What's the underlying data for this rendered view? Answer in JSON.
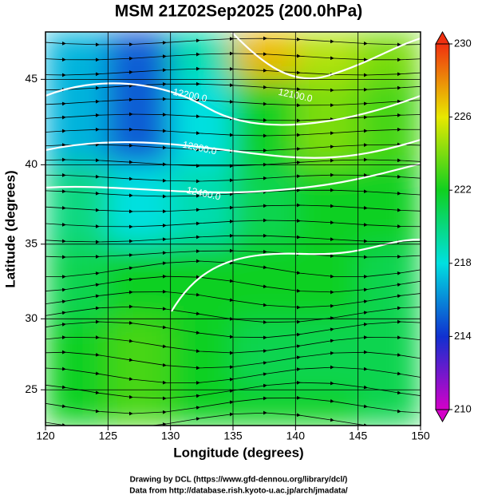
{
  "chart_data": {
    "type": "heatmap",
    "title": "MSM 21Z02Sep2025 (200.0hPa)",
    "x_label": "Longitude (degrees)",
    "y_label": "Latitude  (degrees)",
    "xlim": [
      120,
      150
    ],
    "xticks": [
      120,
      125,
      130,
      135,
      140,
      145,
      150
    ],
    "ylim": [
      22.4,
      47.6
    ],
    "yticks": [
      25,
      30,
      35,
      40,
      45
    ],
    "y_scale": "mercator",
    "grid": true,
    "x_edges": [
      120,
      125,
      130,
      135,
      140,
      145,
      150
    ],
    "y_edges": [
      22.4,
      25,
      30,
      35,
      40,
      45,
      47.6
    ],
    "values": [
      [
        222,
        223,
        222,
        222,
        222,
        221
      ],
      [
        222,
        223,
        222,
        221,
        221,
        221
      ],
      [
        221,
        222,
        222,
        222,
        222,
        221
      ],
      [
        220,
        218,
        219,
        221,
        222,
        222
      ],
      [
        217,
        215,
        218,
        222,
        224,
        223
      ],
      [
        217,
        215,
        219,
        227,
        225,
        224
      ]
    ],
    "colorbar": {
      "lim": [
        210,
        230
      ],
      "ticks": [
        210,
        214,
        218,
        222,
        226,
        230
      ],
      "colors": [
        "#d400c8",
        "#1030d0",
        "#00e0e0",
        "#10d020",
        "#e8e800",
        "#f03010"
      ]
    },
    "contour_labels": [
      "12100.0",
      "12200.0",
      "12300.0",
      "12400.0"
    ],
    "footer": [
      "Drawing by DCL (https://www.gfd-dennou.org/library/dcl/)",
      "Data from http://database.rish.kyoto-u.ac.jp/arch/jmadata/"
    ]
  }
}
